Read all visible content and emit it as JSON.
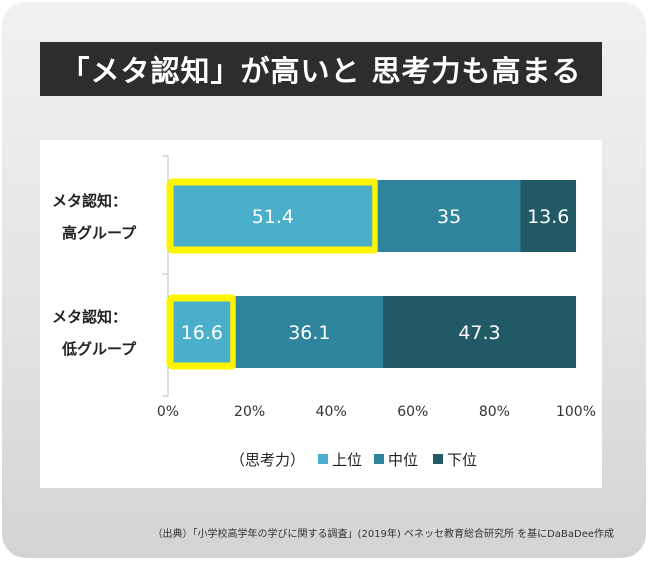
{
  "title": "「メタ認知」が高いと 思考力も高まる",
  "footnote": "（出典）「小学校高学年の学びに関する調査」(2019年) ベネッセ教育総合研究所 を基にDaBaDee作成",
  "colors": {
    "top": "#4aafcb",
    "middle": "#2e849d",
    "bottom": "#215966",
    "highlight": "#fff400"
  },
  "chart_data": {
    "type": "bar",
    "orientation": "horizontal",
    "stacked": true,
    "unit": "%",
    "categories": [
      [
        "メタ認知：",
        "高グループ"
      ],
      [
        "メタ認知：",
        "低グループ"
      ]
    ],
    "series": [
      {
        "name": "上位",
        "values": [
          51.4,
          16.6
        ],
        "labels": [
          "51.4",
          "16.6"
        ]
      },
      {
        "name": "中位",
        "values": [
          35,
          36.1
        ],
        "labels": [
          "35",
          "36.1"
        ]
      },
      {
        "name": "下位",
        "values": [
          13.6,
          47.3
        ],
        "labels": [
          "13.6",
          "47.3"
        ]
      }
    ],
    "xlim": [
      0,
      100
    ],
    "xticks": [
      "0%",
      "20%",
      "40%",
      "60%",
      "80%",
      "100%"
    ],
    "legend_title": "（思考力）",
    "legend_position": "bottom",
    "highlighted_series": "上位"
  }
}
